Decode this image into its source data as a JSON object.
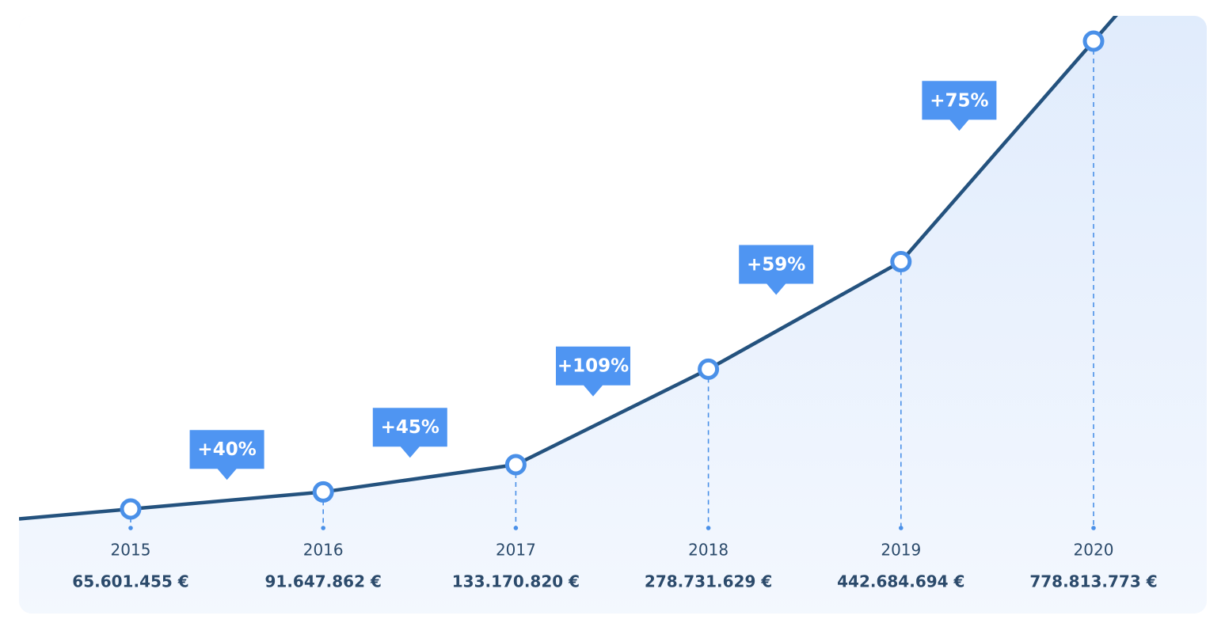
{
  "chart_data": {
    "type": "line",
    "categories": [
      "2015",
      "2016",
      "2017",
      "2018",
      "2019",
      "2020"
    ],
    "values": [
      65601455,
      91647862,
      133170820,
      278731629,
      442684694,
      778813773
    ],
    "value_labels": [
      "65.601.455 €",
      "91.647.862 €",
      "133.170.820 €",
      "278.731.629 €",
      "442.684.694 €",
      "778.813.773 €"
    ],
    "annotations": [
      "+40%",
      "+45%",
      "+109%",
      "+59%",
      "+75%"
    ],
    "color": "#24527e",
    "marker_color": "#4a90e8",
    "annotation_color": "#4f95f2"
  }
}
